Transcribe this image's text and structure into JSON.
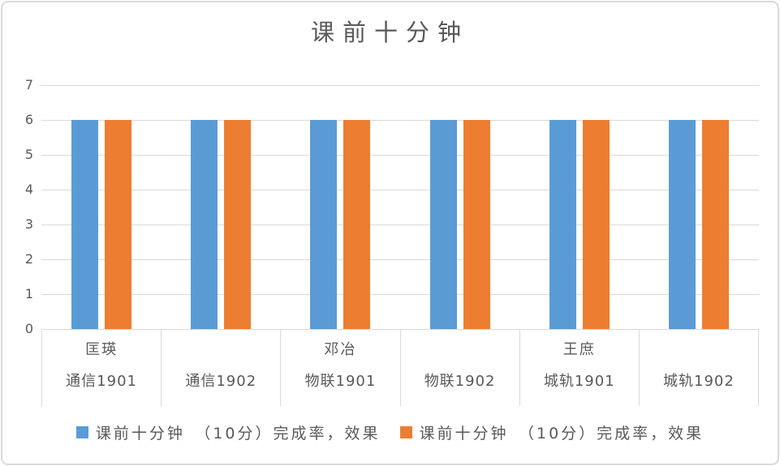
{
  "accent_colors": {
    "series1_blue": "#5B9BD5",
    "series2_orange": "#ED7D31",
    "grid_gray": "#D9D9D9",
    "text_gray": "#595959"
  },
  "chart_data": {
    "type": "bar",
    "title": "课前十分钟",
    "categories": [
      {
        "group": "匡瑛",
        "label": "通信1901"
      },
      {
        "group": "",
        "label": "通信1902"
      },
      {
        "group": "邓冶",
        "label": "物联1901"
      },
      {
        "group": "",
        "label": "物联1902"
      },
      {
        "group": "王庶",
        "label": "城轨1901"
      },
      {
        "group": "",
        "label": "城轨1902"
      }
    ],
    "series": [
      {
        "name": "课前十分钟　（10分）完成率，效果",
        "color": "#5B9BD5",
        "values": [
          6,
          6,
          6,
          6,
          6,
          6
        ]
      },
      {
        "name": "课前十分钟　（10分）完成率，效果",
        "color": "#ED7D31",
        "values": [
          6,
          6,
          6,
          6,
          6,
          6
        ]
      }
    ],
    "ylim": [
      0,
      7
    ],
    "yticks": [
      0,
      1,
      2,
      3,
      4,
      5,
      6,
      7
    ],
    "grid": true,
    "legend_position": "bottom"
  }
}
